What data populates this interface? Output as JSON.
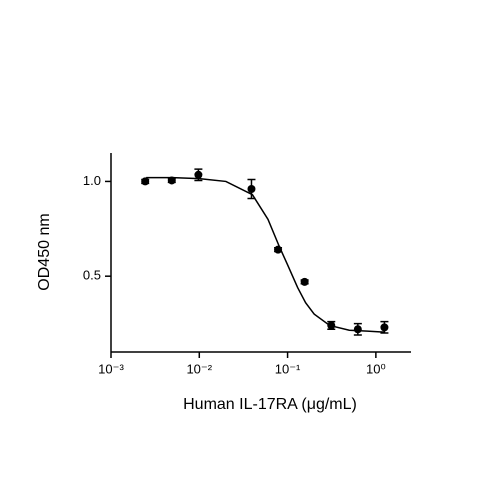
{
  "chart_data": {
    "type": "scatter",
    "xlabel": "Human IL-17RA (μg/mL)",
    "ylabel": "OD450 nm",
    "x": [
      0.00244,
      0.00488,
      0.00977,
      0.039,
      0.078,
      0.156,
      0.3125,
      0.625,
      1.25
    ],
    "values": [
      1.0,
      1.005,
      1.035,
      0.96,
      0.64,
      0.47,
      0.24,
      0.22,
      0.23
    ],
    "errors": [
      0.01,
      0.01,
      0.03,
      0.05,
      0.01,
      0.01,
      0.02,
      0.03,
      0.03
    ],
    "color": "#000000",
    "fit_curve": {
      "x": [
        0.0025,
        0.005,
        0.01,
        0.02,
        0.04,
        0.06,
        0.08,
        0.1,
        0.13,
        0.16,
        0.2,
        0.3,
        0.5,
        0.8,
        1.25
      ],
      "y": [
        1.02,
        1.02,
        1.015,
        1.0,
        0.93,
        0.8,
        0.66,
        0.56,
        0.44,
        0.36,
        0.3,
        0.24,
        0.215,
        0.21,
        0.205
      ]
    },
    "xscale": "log",
    "xlim": [
      0.001,
      2.5
    ],
    "ylim": [
      0.1,
      1.15
    ],
    "xticks": [
      {
        "value": 0.001,
        "label": "10⁻³"
      },
      {
        "value": 0.01,
        "label": "10⁻²"
      },
      {
        "value": 0.1,
        "label": "10⁻¹"
      },
      {
        "value": 1,
        "label": "10⁰"
      }
    ],
    "yticks": [
      0.5,
      {
        "value": 1,
        "label": "1.0"
      }
    ],
    "grid": false
  }
}
